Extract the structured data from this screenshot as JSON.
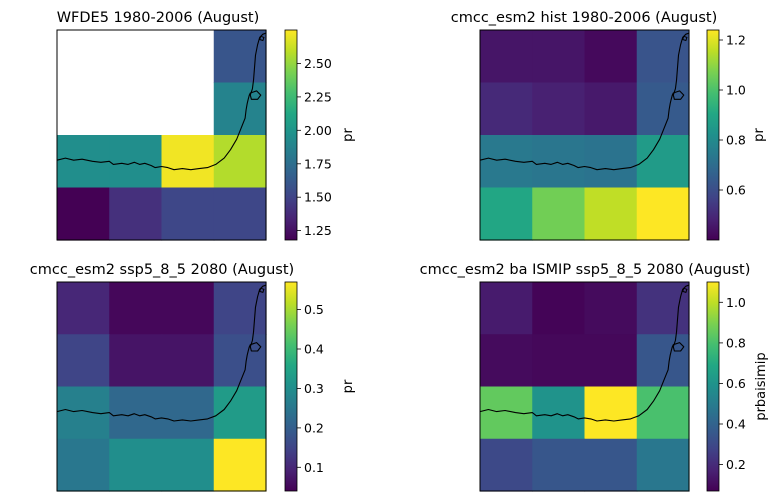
{
  "chart_data": [
    {
      "type": "heatmap",
      "title": "WFDE5 1980-2006 (August)",
      "colorbar_label": "pr",
      "colormap": "viridis",
      "vmin": 1.18,
      "vmax": 2.75,
      "colorbar_ticks": [
        "1.25",
        "1.50",
        "1.75",
        "2.00",
        "2.25",
        "2.50"
      ],
      "tick_values": [
        1.25,
        1.5,
        1.75,
        2.0,
        2.25,
        2.5
      ],
      "grid": [
        [
          null,
          null,
          null,
          1.6
        ],
        [
          null,
          null,
          null,
          1.88
        ],
        [
          1.95,
          1.95,
          2.72,
          2.57
        ],
        [
          1.18,
          1.4,
          1.52,
          1.52
        ]
      ]
    },
    {
      "type": "heatmap",
      "title": "cmcc_esm2 hist 1980-2006 (August)",
      "colorbar_label": "pr",
      "colormap": "viridis",
      "vmin": 0.4,
      "vmax": 1.24,
      "colorbar_ticks": [
        "0.6",
        "0.8",
        "1.0",
        "1.2"
      ],
      "tick_values": [
        0.6,
        0.8,
        1.0,
        1.2
      ],
      "grid": [
        [
          0.45,
          0.45,
          0.42,
          0.62
        ],
        [
          0.5,
          0.48,
          0.46,
          0.64
        ],
        [
          0.74,
          0.73,
          0.72,
          0.86
        ],
        [
          0.9,
          1.06,
          1.16,
          1.24
        ]
      ]
    },
    {
      "type": "heatmap",
      "title": "cmcc_esm2 ssp5_8_5 2080 (August)",
      "colorbar_label": "pr",
      "colormap": "viridis",
      "vmin": 0.04,
      "vmax": 0.57,
      "colorbar_ticks": [
        "0.1",
        "0.2",
        "0.3",
        "0.4",
        "0.5"
      ],
      "tick_values": [
        0.1,
        0.2,
        0.3,
        0.4,
        0.5
      ],
      "grid": [
        [
          0.1,
          0.05,
          0.05,
          0.15
        ],
        [
          0.15,
          0.07,
          0.07,
          0.17
        ],
        [
          0.27,
          0.22,
          0.22,
          0.33
        ],
        [
          0.25,
          0.3,
          0.3,
          0.57
        ]
      ]
    },
    {
      "type": "heatmap",
      "title": "cmcc_esm2 ba ISMIP ssp5_8_5 2080 (August)",
      "colorbar_label": "prbaisimip",
      "colormap": "viridis",
      "vmin": 0.07,
      "vmax": 1.1,
      "colorbar_ticks": [
        "0.2",
        "0.4",
        "0.6",
        "0.8",
        "1.0"
      ],
      "tick_values": [
        0.2,
        0.4,
        0.6,
        0.8,
        1.0
      ],
      "grid": [
        [
          0.15,
          0.08,
          0.1,
          0.22
        ],
        [
          0.1,
          0.09,
          0.09,
          0.35
        ],
        [
          0.85,
          0.6,
          1.1,
          0.8
        ],
        [
          0.3,
          0.35,
          0.35,
          0.48
        ]
      ]
    }
  ]
}
